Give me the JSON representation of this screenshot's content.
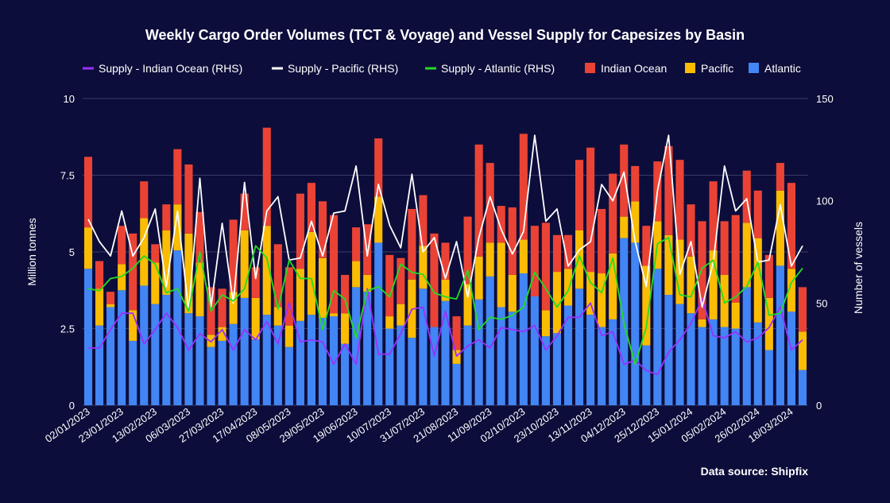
{
  "chart_data": {
    "type": "bar",
    "title": "Weekly Cargo Order Volumes (TCT & Voyage) and Vessel Supply for Capesizes by Basin",
    "source": "Data source: Shipfix",
    "ylabel_left": "Million tonnes",
    "ylabel_right": "Number of vessels",
    "ylim_left": [
      0,
      10
    ],
    "ylim_right": [
      0,
      150
    ],
    "yticks_left": [
      "0",
      "2.5",
      "5",
      "7.5",
      "10"
    ],
    "yticks_right": [
      "0",
      "50",
      "100",
      "150"
    ],
    "x_tick_labels": [
      "02/01/2023",
      "23/01/2023",
      "13/02/2023",
      "06/03/2023",
      "27/03/2023",
      "17/04/2023",
      "08/05/2023",
      "29/05/2023",
      "19/06/2023",
      "10/07/2023",
      "31/07/2023",
      "21/08/2023",
      "11/09/2023",
      "02/10/2023",
      "23/10/2023",
      "13/11/2023",
      "04/12/2023",
      "25/12/2023",
      "15/01/2024",
      "05/02/2024",
      "26/02/2024",
      "18/03/2024"
    ],
    "legend": [
      "Supply - Indian Ocean (RHS)",
      "Supply - Pacific (RHS)",
      "Supply - Atlantic (RHS)",
      "Indian Ocean",
      "Pacific",
      "Atlantic"
    ],
    "legend_position": "top",
    "grid": true,
    "colors": {
      "background": "#0d0d3b",
      "atlantic": "#4285f4",
      "pacific": "#fbbc04",
      "indian_ocean": "#ea4335",
      "supply_indian": "#9b30ff",
      "supply_pacific": "#ffffff",
      "supply_atlantic": "#22dd22",
      "grid": "#3a3a66"
    },
    "series": [
      {
        "name": "Atlantic",
        "kind": "bar",
        "stack": "cargo",
        "values": [
          4.45,
          2.6,
          3.2,
          3.75,
          2.1,
          3.9,
          3.3,
          3.6,
          5.05,
          3.0,
          2.9,
          1.9,
          2.1,
          2.65,
          3.5,
          2.15,
          2.95,
          2.6,
          1.9,
          2.75,
          2.95,
          2.85,
          2.9,
          2.0,
          3.85,
          3.7,
          5.3,
          2.5,
          2.6,
          2.2,
          3.8,
          2.55,
          3.4,
          1.35,
          2.6,
          3.45,
          4.2,
          3.2,
          3.05,
          4.3,
          3.55,
          2.25,
          2.35,
          3.25,
          3.8,
          2.95,
          2.55,
          2.8,
          5.45,
          5.3,
          1.95,
          4.45,
          3.6,
          3.3,
          3.0,
          2.55,
          2.8,
          2.55,
          2.5,
          3.85,
          2.7,
          1.8,
          4.55,
          3.05,
          1.15
        ]
      },
      {
        "name": "Pacific",
        "kind": "bar",
        "stack": "cargo",
        "values": [
          1.35,
          1.2,
          0.1,
          0.85,
          1.0,
          2.2,
          1.35,
          2.1,
          1.5,
          2.6,
          1.75,
          0.4,
          0.45,
          1.05,
          2.2,
          1.35,
          2.9,
          0.6,
          0.7,
          1.7,
          2.7,
          1.95,
          0.1,
          1.0,
          0.85,
          0.55,
          1.5,
          0.4,
          0.7,
          1.9,
          1.4,
          0.0,
          0.7,
          0.45,
          1.35,
          1.4,
          1.1,
          2.1,
          1.2,
          1.1,
          0.0,
          0.85,
          2.0,
          1.2,
          1.9,
          1.4,
          1.75,
          2.15,
          0.7,
          1.35,
          2.6,
          1.55,
          1.95,
          2.1,
          1.85,
          0.25,
          2.25,
          1.7,
          0.85,
          2.1,
          2.75,
          1.7,
          2.45,
          1.4,
          1.25
        ]
      },
      {
        "name": "Indian Ocean",
        "kind": "bar",
        "stack": "cargo",
        "values": [
          2.3,
          0.9,
          0.4,
          1.25,
          2.5,
          1.2,
          0.6,
          0.85,
          1.8,
          2.25,
          1.65,
          1.55,
          1.25,
          2.35,
          1.2,
          1.0,
          3.2,
          2.05,
          1.9,
          2.45,
          1.6,
          1.85,
          3.2,
          1.25,
          1.1,
          1.65,
          1.9,
          2.0,
          1.5,
          2.3,
          1.65,
          3.05,
          1.2,
          1.1,
          2.2,
          3.65,
          2.6,
          1.2,
          2.2,
          3.45,
          2.3,
          2.85,
          1.2,
          1.1,
          2.3,
          4.05,
          2.1,
          2.6,
          2.35,
          1.15,
          1.3,
          1.95,
          2.9,
          2.6,
          1.7,
          3.2,
          2.25,
          1.75,
          2.85,
          1.7,
          1.55,
          1.4,
          0.9,
          2.8,
          1.45
        ]
      },
      {
        "name": "Supply - Indian Ocean (RHS)",
        "kind": "line",
        "axis": "right",
        "values": [
          28,
          28,
          37,
          45,
          45,
          30,
          37,
          45,
          38,
          27,
          35,
          31,
          37,
          27,
          37,
          32,
          41,
          30,
          50,
          31,
          32,
          31,
          20,
          30,
          20,
          57,
          25,
          25,
          35,
          47,
          48,
          24,
          46,
          24,
          29,
          32,
          28,
          38,
          37,
          36,
          39,
          27,
          34,
          43,
          43,
          50,
          34,
          36,
          20,
          22,
          17,
          15,
          26,
          32,
          40,
          52,
          34,
          33,
          36,
          31,
          33,
          38,
          48,
          27,
          32
        ]
      },
      {
        "name": "Supply - Pacific (RHS)",
        "kind": "line",
        "axis": "right",
        "values": [
          91,
          80,
          73,
          95,
          73,
          82,
          96,
          58,
          95,
          46,
          111,
          48,
          89,
          50,
          109,
          62,
          95,
          102,
          71,
          72,
          90,
          73,
          94,
          95,
          117,
          73,
          108,
          88,
          77,
          113,
          75,
          82,
          62,
          80,
          53,
          82,
          102,
          86,
          74,
          85,
          132,
          90,
          96,
          68,
          76,
          80,
          108,
          100,
          114,
          80,
          58,
          105,
          132,
          64,
          80,
          48,
          70,
          117,
          95,
          101,
          70,
          71,
          98,
          68,
          78
        ]
      },
      {
        "name": "Supply - Atlantic (RHS)",
        "kind": "line",
        "axis": "right",
        "values": [
          57,
          56,
          62,
          63,
          67,
          73,
          69,
          55,
          57,
          46,
          75,
          46,
          54,
          51,
          57,
          78,
          72,
          47,
          71,
          62,
          62,
          37,
          56,
          52,
          33,
          56,
          58,
          53,
          69,
          65,
          64,
          55,
          53,
          52,
          66,
          37,
          43,
          42,
          44,
          48,
          65,
          57,
          48,
          56,
          73,
          60,
          55,
          72,
          40,
          20,
          38,
          79,
          82,
          54,
          53,
          67,
          71,
          50,
          53,
          58,
          70,
          44,
          45,
          60,
          67
        ]
      }
    ]
  }
}
